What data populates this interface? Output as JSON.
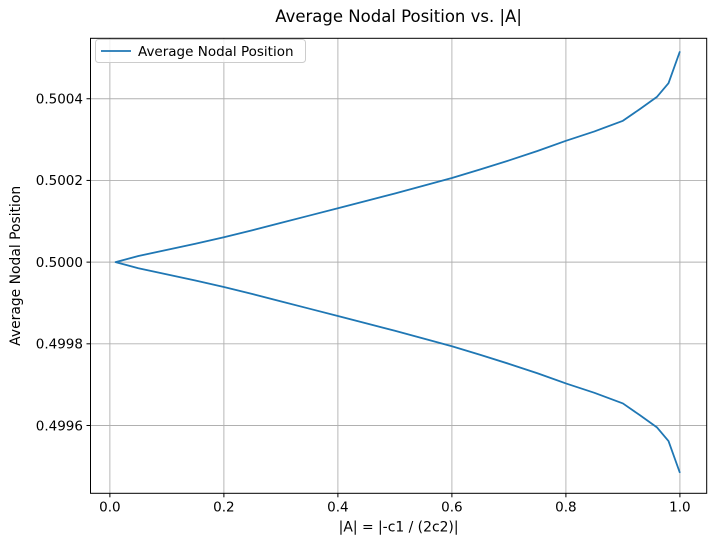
{
  "figure": {
    "background": "#ffffff"
  },
  "chart_data": {
    "type": "line",
    "title": "Average Nodal Position vs. |A|",
    "xlabel": "|A| = |-c1 / (2c2)|",
    "ylabel": "Average Nodal Position",
    "xlim": [
      -0.034,
      1.047
    ],
    "ylim": [
      0.499434,
      0.500548
    ],
    "grid": true,
    "legend": {
      "position": "upper left",
      "label": "Average Nodal Position"
    },
    "xticks": {
      "values": [
        0.0,
        0.2,
        0.4,
        0.6,
        0.8,
        1.0
      ],
      "labels": [
        "0.0",
        "0.2",
        "0.4",
        "0.6",
        "0.8",
        "1.0"
      ]
    },
    "yticks": {
      "values": [
        0.4996,
        0.4998,
        0.5,
        0.5002,
        0.5004
      ],
      "labels": [
        "0.4996",
        "0.4998",
        "0.5000",
        "0.5002",
        "0.5004"
      ]
    },
    "series": [
      {
        "name": "Average Nodal Position",
        "color": "#1f77b4",
        "points": [
          [
            1.0,
            0.500516
          ],
          [
            0.98,
            0.500438
          ],
          [
            0.96,
            0.500405
          ],
          [
            0.93,
            0.500375
          ],
          [
            0.9,
            0.500346
          ],
          [
            0.85,
            0.50032
          ],
          [
            0.8,
            0.500297
          ],
          [
            0.75,
            0.500272
          ],
          [
            0.7,
            0.500249
          ],
          [
            0.65,
            0.500227
          ],
          [
            0.6,
            0.500206
          ],
          [
            0.55,
            0.500187
          ],
          [
            0.5,
            0.500168
          ],
          [
            0.45,
            0.50015
          ],
          [
            0.4,
            0.500132
          ],
          [
            0.35,
            0.500114
          ],
          [
            0.3,
            0.500096
          ],
          [
            0.25,
            0.500078
          ],
          [
            0.2,
            0.500061
          ],
          [
            0.15,
            0.500045
          ],
          [
            0.1,
            0.50003
          ],
          [
            0.05,
            0.500015
          ],
          [
            0.01,
            0.5
          ],
          [
            0.05,
            0.499985
          ],
          [
            0.1,
            0.49997
          ],
          [
            0.15,
            0.499955
          ],
          [
            0.2,
            0.499939
          ],
          [
            0.25,
            0.499922
          ],
          [
            0.3,
            0.499904
          ],
          [
            0.35,
            0.499886
          ],
          [
            0.4,
            0.499868
          ],
          [
            0.45,
            0.49985
          ],
          [
            0.5,
            0.499832
          ],
          [
            0.55,
            0.499813
          ],
          [
            0.6,
            0.499794
          ],
          [
            0.65,
            0.499773
          ],
          [
            0.7,
            0.499751
          ],
          [
            0.75,
            0.499728
          ],
          [
            0.8,
            0.499703
          ],
          [
            0.85,
            0.49968
          ],
          [
            0.9,
            0.499654
          ],
          [
            0.93,
            0.499625
          ],
          [
            0.96,
            0.499595
          ],
          [
            0.98,
            0.499562
          ],
          [
            1.0,
            0.499484
          ]
        ]
      }
    ],
    "colors": {
      "line": "#1f77b4",
      "grid": "#b0b0b0",
      "spine": "#000000",
      "text": "#000000",
      "legend_border": "#cccccc",
      "background": "#ffffff"
    }
  }
}
